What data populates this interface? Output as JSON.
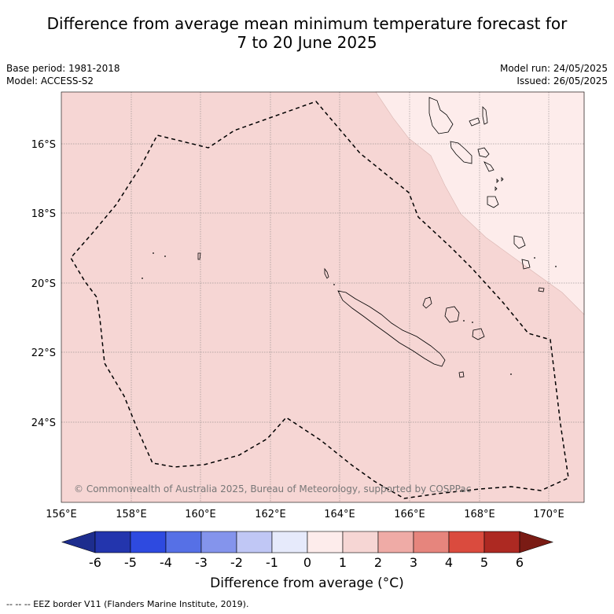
{
  "title_line1": "Difference from average mean minimum temperature forecast for",
  "title_line2": "7 to 20 June 2025",
  "base_period": "Base period: 1981-2018",
  "model": "Model: ACCESS-S2",
  "model_run": "Model run: 24/05/2025",
  "issued": "Issued: 26/05/2025",
  "copyright": "© Commonwealth of Australia 2025, Bureau of Meteorology, supported by COSPPac",
  "lat_labels": [
    "16°S",
    "18°S",
    "20°S",
    "22°S",
    "24°S"
  ],
  "lon_labels": [
    "156°E",
    "158°E",
    "160°E",
    "162°E",
    "164°E",
    "166°E",
    "168°E",
    "170°E"
  ],
  "colorbar": {
    "ticks": [
      "-6",
      "-5",
      "-4",
      "-3",
      "-2",
      "-1",
      "0",
      "1",
      "2",
      "3",
      "4",
      "5",
      "6"
    ],
    "colors": [
      "#1d2d8e",
      "#2335ad",
      "#2e4ae0",
      "#5670e6",
      "#8494ec",
      "#c0c7f5",
      "#e6eafb",
      "#fdeceb",
      "#f6d6d4",
      "#efaba6",
      "#e6857d",
      "#da4b3e",
      "#ad2922",
      "#7a1b14"
    ],
    "label": "Difference from average (°C)"
  },
  "fill_colors": {
    "main": "#f6d6d4",
    "light": "#fdeceb"
  },
  "footer": "-- -- -- EEZ border V11 (Flanders Marine Institute, 2019)."
}
